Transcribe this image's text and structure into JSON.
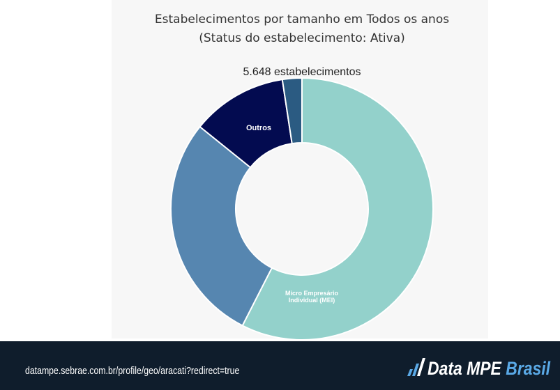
{
  "chart_data": {
    "type": "donut",
    "title": "Estabelecimentos por tamanho em Todos os anos",
    "subtitle": "(Status do estabelecimento: Ativa)",
    "total_label": "5.648 estabelecimentos",
    "categories": [
      "Micro Empresário Individual (MEI)",
      null,
      "Outros",
      null
    ],
    "values": [
      57.5,
      28.3,
      11.8,
      2.4
    ],
    "colors": [
      "#93d1cb",
      "#5686b0",
      "#030b50",
      "#2b5b82"
    ]
  },
  "footer": {
    "url": "datampe.sebrae.com.br/profile/geo/aracati?redirect=true",
    "logo_primary": "Data MPE",
    "logo_secondary": "Brasil"
  }
}
